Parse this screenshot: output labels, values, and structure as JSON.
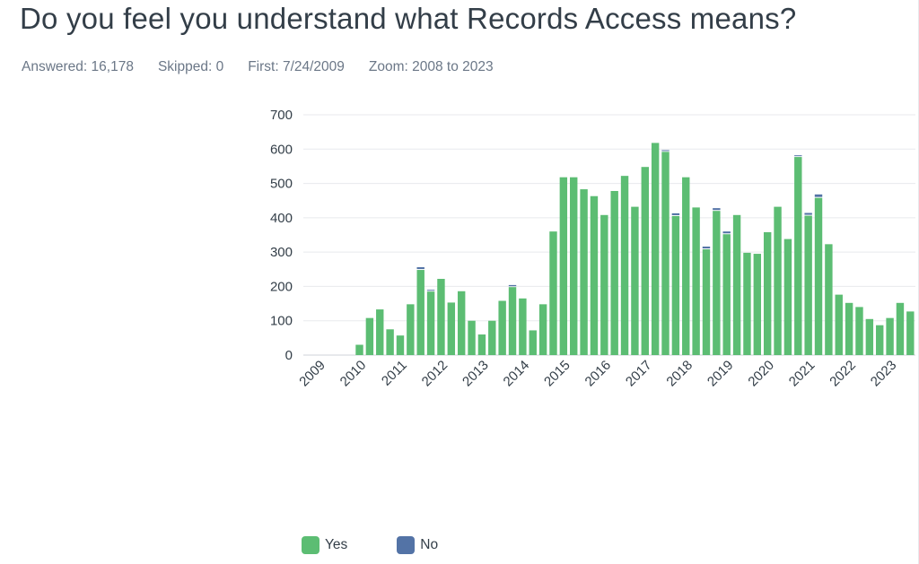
{
  "header": {
    "title": "Do you feel you understand what Records Access means?",
    "answered": "Answered: 16,178",
    "skipped": "Skipped: 0",
    "first": "First: 7/24/2009",
    "zoom": "Zoom: 2008 to 2023"
  },
  "colors": {
    "yes": "#5cbd73",
    "no": "#5373a6",
    "grid": "#e8eaed",
    "axis_text": "#333e48"
  },
  "chart_data": {
    "type": "bar",
    "stacked": true,
    "ylim": [
      0,
      700
    ],
    "yticks": [
      0,
      100,
      200,
      300,
      400,
      500,
      600,
      700
    ],
    "x_tick_labels": [
      "2009",
      "2010",
      "2011",
      "2012",
      "2013",
      "2014",
      "2015",
      "2016",
      "2017",
      "2018",
      "2019",
      "2020",
      "2021",
      "2022",
      "2023"
    ],
    "x_tick_bar_index": [
      1,
      5,
      9,
      13,
      17,
      21,
      25,
      29,
      33,
      37,
      41,
      45,
      49,
      53,
      57
    ],
    "legend": [
      "Yes",
      "No"
    ],
    "legend_position": "bottom",
    "grid": true,
    "series": [
      {
        "name": "Yes",
        "values": [
          0,
          0,
          0,
          0,
          0,
          30,
          108,
          133,
          75,
          57,
          148,
          248,
          185,
          222,
          153,
          186,
          100,
          60,
          100,
          158,
          198,
          165,
          72,
          148,
          360,
          518,
          518,
          483,
          463,
          408,
          478,
          522,
          432,
          548,
          618,
          592,
          405,
          518,
          430,
          308,
          420,
          352,
          408,
          298,
          295,
          358,
          432,
          338,
          577,
          406,
          458,
          323,
          176,
          152,
          140,
          105,
          87,
          108,
          152,
          127
        ]
      },
      {
        "name": "No",
        "values": [
          0,
          0,
          0,
          0,
          0,
          0,
          0,
          0,
          0,
          0,
          0,
          8,
          5,
          0,
          0,
          0,
          0,
          0,
          0,
          0,
          6,
          0,
          0,
          0,
          0,
          0,
          0,
          0,
          0,
          0,
          0,
          0,
          0,
          0,
          0,
          5,
          8,
          0,
          0,
          8,
          8,
          8,
          0,
          0,
          0,
          0,
          0,
          0,
          5,
          8,
          10,
          0,
          0,
          0,
          0,
          0,
          0,
          0,
          0,
          0
        ]
      }
    ]
  }
}
